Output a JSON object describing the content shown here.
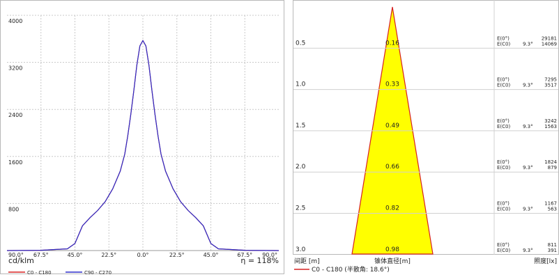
{
  "chart_data": [
    {
      "type": "line",
      "ylabel": "cd/klm",
      "efficiency_label": "η = 118%",
      "ylim": [
        0,
        4000
      ],
      "y_ticks": [
        "4000",
        "3200",
        "2400",
        "1600",
        "800"
      ],
      "y_tick_values": [
        4000,
        3200,
        2400,
        1600,
        800
      ],
      "x_ticks": [
        "90.0°",
        "67.5°",
        "45.0°",
        "22.5°",
        "0.0°",
        "22.5°",
        "45.0°",
        "67.5°",
        "90.0°"
      ],
      "x_tick_values": [
        -90,
        -67.5,
        -45,
        -22.5,
        0,
        22.5,
        45,
        67.5,
        90
      ],
      "grid": true,
      "legend_position": "bottom-left",
      "series": [
        {
          "name": "C0 - C180",
          "color": "#d62020",
          "x": [
            -90,
            -67.5,
            -50,
            -45,
            -40,
            -35,
            -30,
            -25,
            -20,
            -15,
            -12,
            -10,
            -8,
            -6,
            -4,
            -2,
            0,
            2,
            4,
            6,
            8,
            10,
            12,
            15,
            20,
            25,
            30,
            35,
            40,
            45,
            50,
            67.5,
            90
          ],
          "y": [
            0,
            5,
            30,
            120,
            420,
            560,
            680,
            830,
            1050,
            1350,
            1640,
            1950,
            2320,
            2720,
            3150,
            3480,
            3570,
            3480,
            3150,
            2720,
            2320,
            1950,
            1640,
            1350,
            1050,
            830,
            680,
            560,
            420,
            120,
            30,
            5,
            0
          ]
        },
        {
          "name": "C90 - C270",
          "color": "#2c2cc8",
          "x": [
            -90,
            -67.5,
            -50,
            -45,
            -40,
            -35,
            -30,
            -25,
            -20,
            -15,
            -12,
            -10,
            -8,
            -6,
            -4,
            -2,
            0,
            2,
            4,
            6,
            8,
            10,
            12,
            15,
            20,
            25,
            30,
            35,
            40,
            45,
            50,
            67.5,
            90
          ],
          "y": [
            0,
            5,
            30,
            120,
            420,
            560,
            680,
            830,
            1050,
            1350,
            1640,
            1950,
            2320,
            2720,
            3150,
            3480,
            3570,
            3480,
            3150,
            2720,
            2320,
            1950,
            1640,
            1350,
            1050,
            830,
            680,
            560,
            420,
            120,
            30,
            5,
            0
          ]
        }
      ]
    },
    {
      "type": "table",
      "xlabel": "间距 [m]",
      "center_label": "锥体直径[m]",
      "right_label": "照度[lx]",
      "legend": {
        "name": "C0 - C180 (半散角: 18.6°)",
        "color": "#d62020"
      },
      "cone_color": "#ffff00",
      "cone_edge_color": "#d62020",
      "rows": [
        {
          "distance": "0.5",
          "diameter": "0.16",
          "e0_label": "E(0°)",
          "ec0_label": "E(C0)",
          "angle": "9.3°",
          "e0_value": "29181",
          "ec0_value": "14069"
        },
        {
          "distance": "1.0",
          "diameter": "0.33",
          "e0_label": "E(0°)",
          "ec0_label": "E(C0)",
          "angle": "9.3°",
          "e0_value": "7295",
          "ec0_value": "3517"
        },
        {
          "distance": "1.5",
          "diameter": "0.49",
          "e0_label": "E(0°)",
          "ec0_label": "E(C0)",
          "angle": "9.3°",
          "e0_value": "3242",
          "ec0_value": "1563"
        },
        {
          "distance": "2.0",
          "diameter": "0.66",
          "e0_label": "E(0°)",
          "ec0_label": "E(C0)",
          "angle": "9.3°",
          "e0_value": "1824",
          "ec0_value": "879"
        },
        {
          "distance": "2.5",
          "diameter": "0.82",
          "e0_label": "E(0°)",
          "ec0_label": "E(C0)",
          "angle": "9.3°",
          "e0_value": "1167",
          "ec0_value": "563"
        },
        {
          "distance": "3.0",
          "diameter": "0.98",
          "e0_label": "E(0°)",
          "ec0_label": "E(C0)",
          "angle": "9.3°",
          "e0_value": "811",
          "ec0_value": "391"
        }
      ]
    }
  ]
}
